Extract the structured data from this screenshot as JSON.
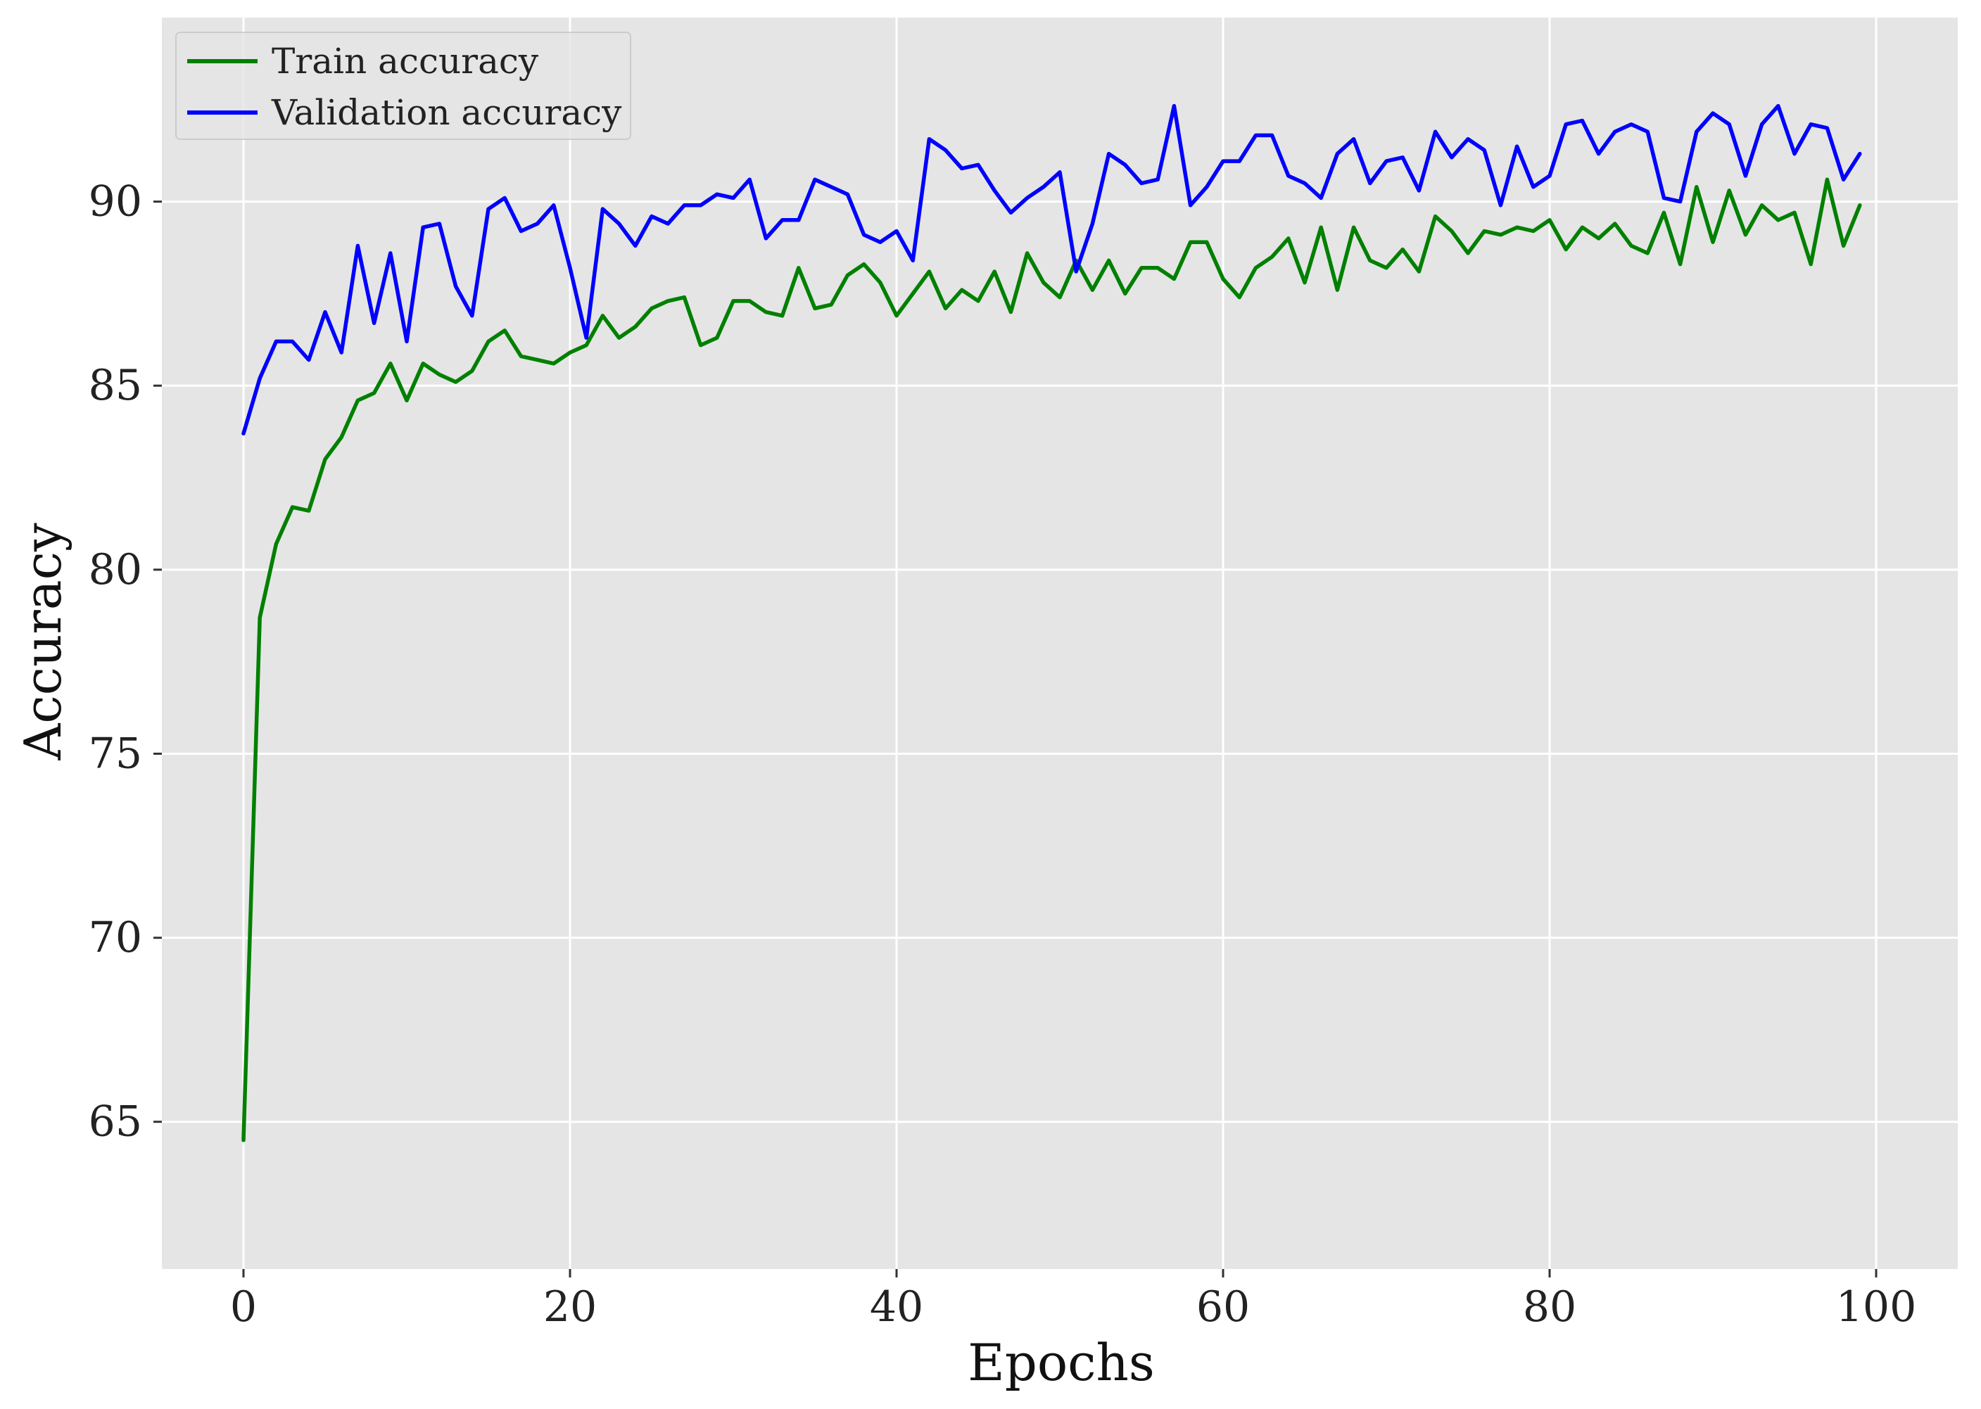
{
  "chart_data": {
    "type": "line",
    "title": "",
    "xlabel": "Epochs",
    "ylabel": "Accuracy",
    "xlim": [
      -5,
      105
    ],
    "ylim": [
      61,
      95
    ],
    "x_ticks": [
      0,
      20,
      40,
      60,
      80,
      100
    ],
    "y_ticks": [
      65,
      70,
      75,
      80,
      85,
      90
    ],
    "grid": true,
    "legend_position": "top-left",
    "plot_background": "#e5e5e5",
    "grid_color": "#ffffff",
    "x": [
      0,
      1,
      2,
      3,
      4,
      5,
      6,
      7,
      8,
      9,
      10,
      11,
      12,
      13,
      14,
      15,
      16,
      17,
      18,
      19,
      20,
      21,
      22,
      23,
      24,
      25,
      26,
      27,
      28,
      29,
      30,
      31,
      32,
      33,
      34,
      35,
      36,
      37,
      38,
      39,
      40,
      41,
      42,
      43,
      44,
      45,
      46,
      47,
      48,
      49,
      50,
      51,
      52,
      53,
      54,
      55,
      56,
      57,
      58,
      59,
      60,
      61,
      62,
      63,
      64,
      65,
      66,
      67,
      68,
      69,
      70,
      71,
      72,
      73,
      74,
      75,
      76,
      77,
      78,
      79,
      80,
      81,
      82,
      83,
      84,
      85,
      86,
      87,
      88,
      89,
      90,
      91,
      92,
      93,
      94,
      95,
      96,
      97,
      98,
      99
    ],
    "series": [
      {
        "name": "Train accuracy",
        "color": "#008000",
        "values": [
          64.5,
          78.7,
          80.7,
          81.7,
          81.6,
          83.0,
          83.6,
          84.6,
          84.8,
          85.6,
          84.6,
          85.6,
          85.3,
          85.1,
          85.4,
          86.2,
          86.5,
          85.8,
          85.7,
          85.6,
          85.9,
          86.1,
          86.9,
          86.3,
          86.6,
          87.1,
          87.3,
          87.4,
          86.1,
          86.3,
          87.3,
          87.3,
          87.0,
          86.9,
          88.2,
          87.1,
          87.2,
          88.0,
          88.3,
          87.8,
          86.9,
          87.5,
          88.1,
          87.1,
          87.6,
          87.3,
          88.1,
          87.0,
          88.6,
          87.8,
          87.4,
          88.4,
          87.6,
          88.4,
          87.5,
          88.2,
          88.2,
          87.9,
          88.9,
          88.9,
          87.9,
          87.4,
          88.2,
          88.5,
          89.0,
          87.8,
          89.3,
          87.6,
          89.3,
          88.4,
          88.2,
          88.7,
          88.1,
          89.6,
          89.2,
          88.6,
          89.2,
          89.1,
          89.3,
          89.2,
          89.5,
          88.7,
          89.3,
          89.0,
          89.4,
          88.8,
          88.6,
          89.7,
          88.3,
          90.4,
          88.9,
          90.3,
          89.1,
          89.9,
          89.5,
          89.7,
          88.3,
          90.6,
          88.8,
          89.9
        ]
      },
      {
        "name": "Validation accuracy",
        "color": "#0000ff",
        "values": [
          83.7,
          85.2,
          86.2,
          86.2,
          85.7,
          87.0,
          85.9,
          88.8,
          86.7,
          88.6,
          86.2,
          89.3,
          89.4,
          87.7,
          86.9,
          89.8,
          90.1,
          89.2,
          89.4,
          89.9,
          88.2,
          86.3,
          89.8,
          89.4,
          88.8,
          89.6,
          89.4,
          89.9,
          89.9,
          90.2,
          90.1,
          90.6,
          89.0,
          89.5,
          89.5,
          90.6,
          90.4,
          90.2,
          89.1,
          88.9,
          89.2,
          88.4,
          91.7,
          91.4,
          90.9,
          91.0,
          90.3,
          89.7,
          90.1,
          90.4,
          90.8,
          88.1,
          89.4,
          91.3,
          91.0,
          90.5,
          90.6,
          92.6,
          89.9,
          90.4,
          91.1,
          91.1,
          91.8,
          91.8,
          90.7,
          90.5,
          90.1,
          91.3,
          91.7,
          90.5,
          91.1,
          91.2,
          90.3,
          91.9,
          91.2,
          91.7,
          91.4,
          89.9,
          91.5,
          90.4,
          90.7,
          92.1,
          92.2,
          91.3,
          91.9,
          92.1,
          91.9,
          90.1,
          90.0,
          91.9,
          92.4,
          92.1,
          90.7,
          92.1,
          92.6,
          91.3,
          92.1,
          92.0,
          90.6,
          91.3
        ]
      }
    ]
  }
}
